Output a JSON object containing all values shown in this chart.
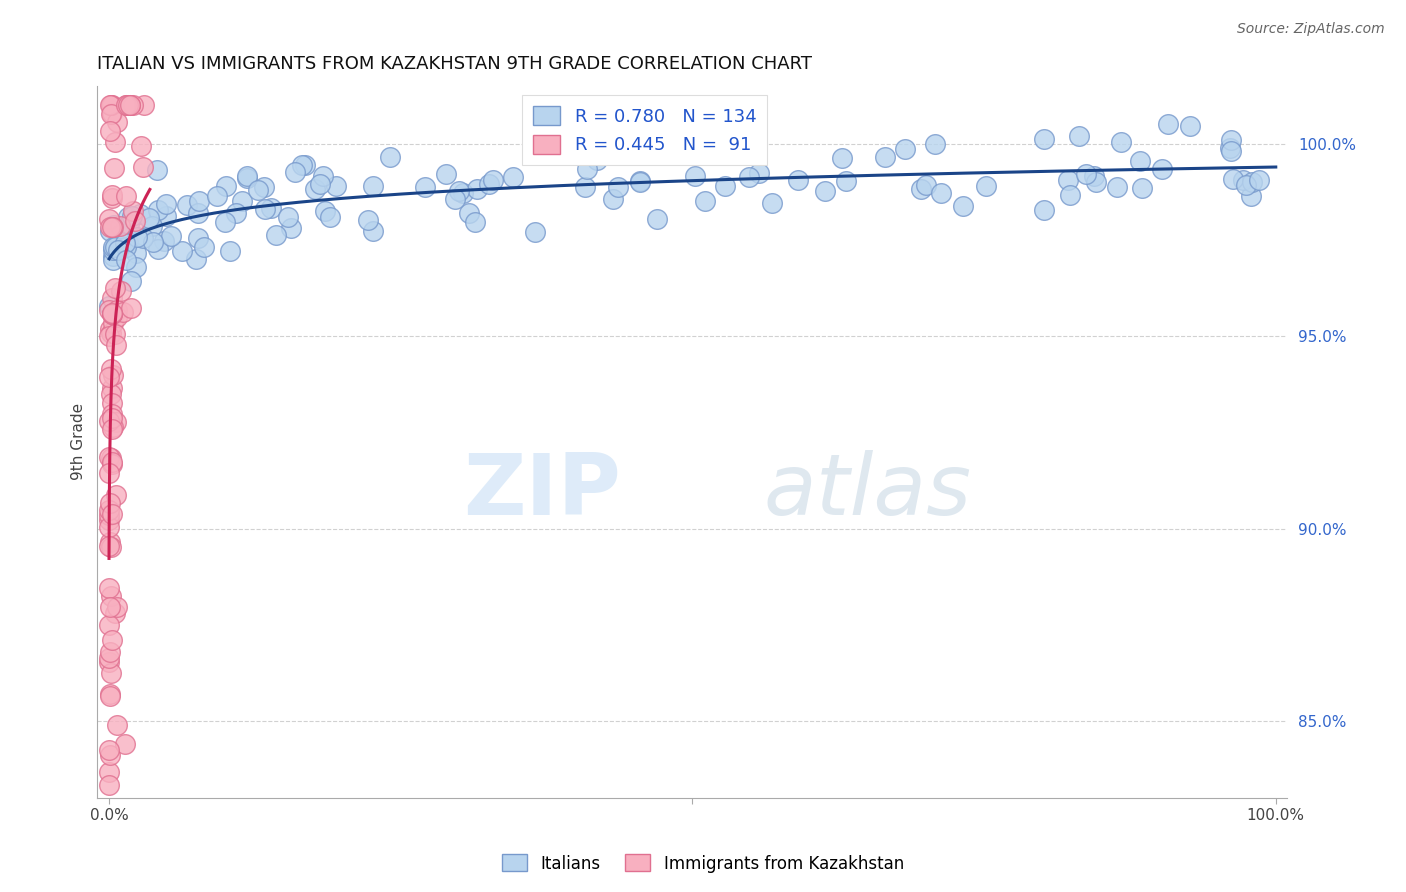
{
  "title": "ITALIAN VS IMMIGRANTS FROM KAZAKHSTAN 9TH GRADE CORRELATION CHART",
  "source": "Source: ZipAtlas.com",
  "ylabel": "9th Grade",
  "watermark_zip": "ZIP",
  "watermark_atlas": "atlas",
  "blue_R": 0.78,
  "blue_N": 134,
  "pink_R": 0.445,
  "pink_N": 91,
  "blue_color": "#b8d4ee",
  "blue_edge": "#7799cc",
  "pink_color": "#f8b0c0",
  "pink_edge": "#e07090",
  "blue_line_color": "#1a4488",
  "pink_line_color": "#cc2255",
  "legend_blue_label": "Italians",
  "legend_pink_label": "Immigrants from Kazakhstan",
  "background_color": "#ffffff",
  "grid_color": "#cccccc",
  "ymin": 83.0,
  "ymax": 101.5,
  "xmin": -1.0,
  "xmax": 101.0,
  "yticks": [
    85.0,
    90.0,
    95.0,
    100.0
  ],
  "ytick_labels": [
    "85.0%",
    "90.0%",
    "95.0%",
    "100.0%"
  ]
}
